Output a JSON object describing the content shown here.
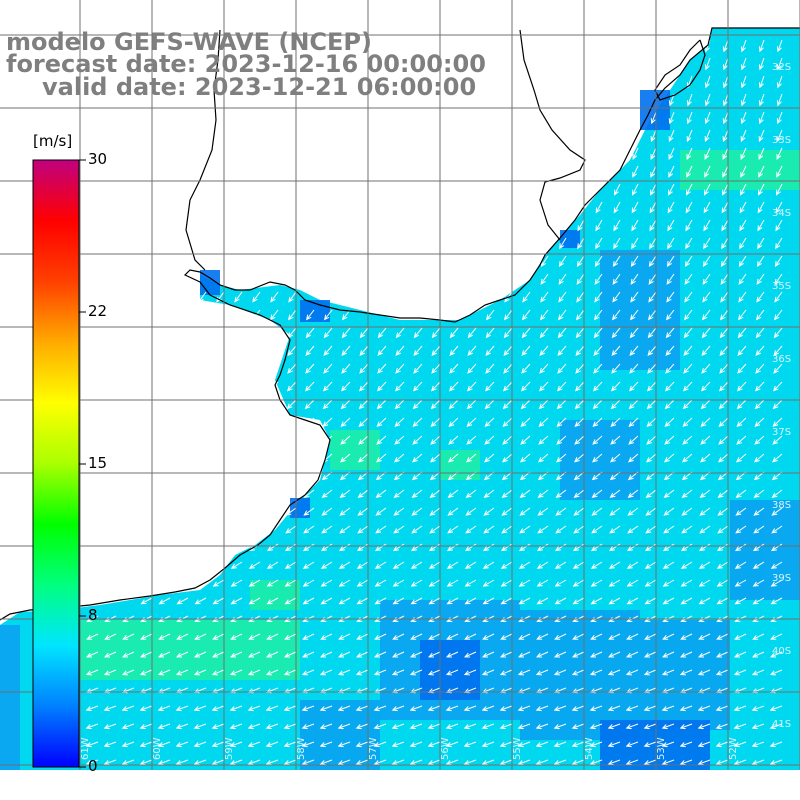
{
  "title": {
    "line1": "modelo GEFS-WAVE (NCEP)",
    "line2": "forecast date: 2023-12-16 00:00:00",
    "line3": "valid date: 2023-12-21 06:00:00"
  },
  "colorbar": {
    "units": "[m/s]",
    "ticks": [
      "30",
      "22",
      "15",
      "8",
      "0"
    ],
    "min": 0,
    "max": 30,
    "colors": [
      "#0000ff",
      "#0080ff",
      "#00e5ff",
      "#00ff7f",
      "#00ff00",
      "#aaff00",
      "#ffff00",
      "#ffaa00",
      "#ff4000",
      "#ff0000",
      "#c0007f"
    ]
  },
  "map": {
    "lat_labels": [
      "32S",
      "33S",
      "34S",
      "35S",
      "36S",
      "37S",
      "38S",
      "39S",
      "40S",
      "41S"
    ],
    "lon_labels": [
      "61W",
      "60W",
      "59W",
      "58W",
      "57W",
      "56W",
      "55W",
      "54W",
      "53W",
      "52W"
    ],
    "ocean_base_color": "#00d8f0",
    "land_color": "#ffffff",
    "wind_direction": "from northeast toward southwest"
  }
}
